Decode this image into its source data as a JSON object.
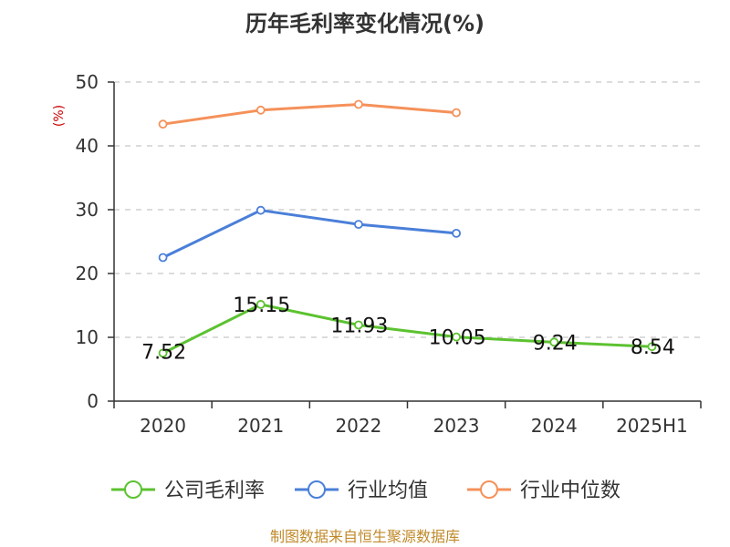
{
  "chart_data": {
    "type": "line",
    "title": "历年毛利率变化情况(%)",
    "y_unit": "(%)",
    "categories": [
      "2020",
      "2021",
      "2022",
      "2023",
      "2024",
      "2025H1"
    ],
    "ylim": [
      0,
      50
    ],
    "yticks": [
      "0",
      "10",
      "20",
      "30",
      "40",
      "50"
    ],
    "grid": true,
    "legend_position": "bottom",
    "series": [
      {
        "name": "公司毛利率",
        "color": "#5cc230",
        "values": [
          7.52,
          15.15,
          11.93,
          10.05,
          9.24,
          8.54
        ],
        "labels": [
          "7.52",
          "15.15",
          "11.93",
          "10.05",
          "9.24",
          "8.54"
        ]
      },
      {
        "name": "行业均值",
        "color": "#4a7fd9",
        "values": [
          22.5,
          29.9,
          27.7,
          26.3,
          null,
          null
        ]
      },
      {
        "name": "行业中位数",
        "color": "#f5915a",
        "values": [
          43.4,
          45.6,
          46.5,
          45.2,
          null,
          null
        ]
      }
    ],
    "source": "制图数据来自恒生聚源数据库"
  }
}
